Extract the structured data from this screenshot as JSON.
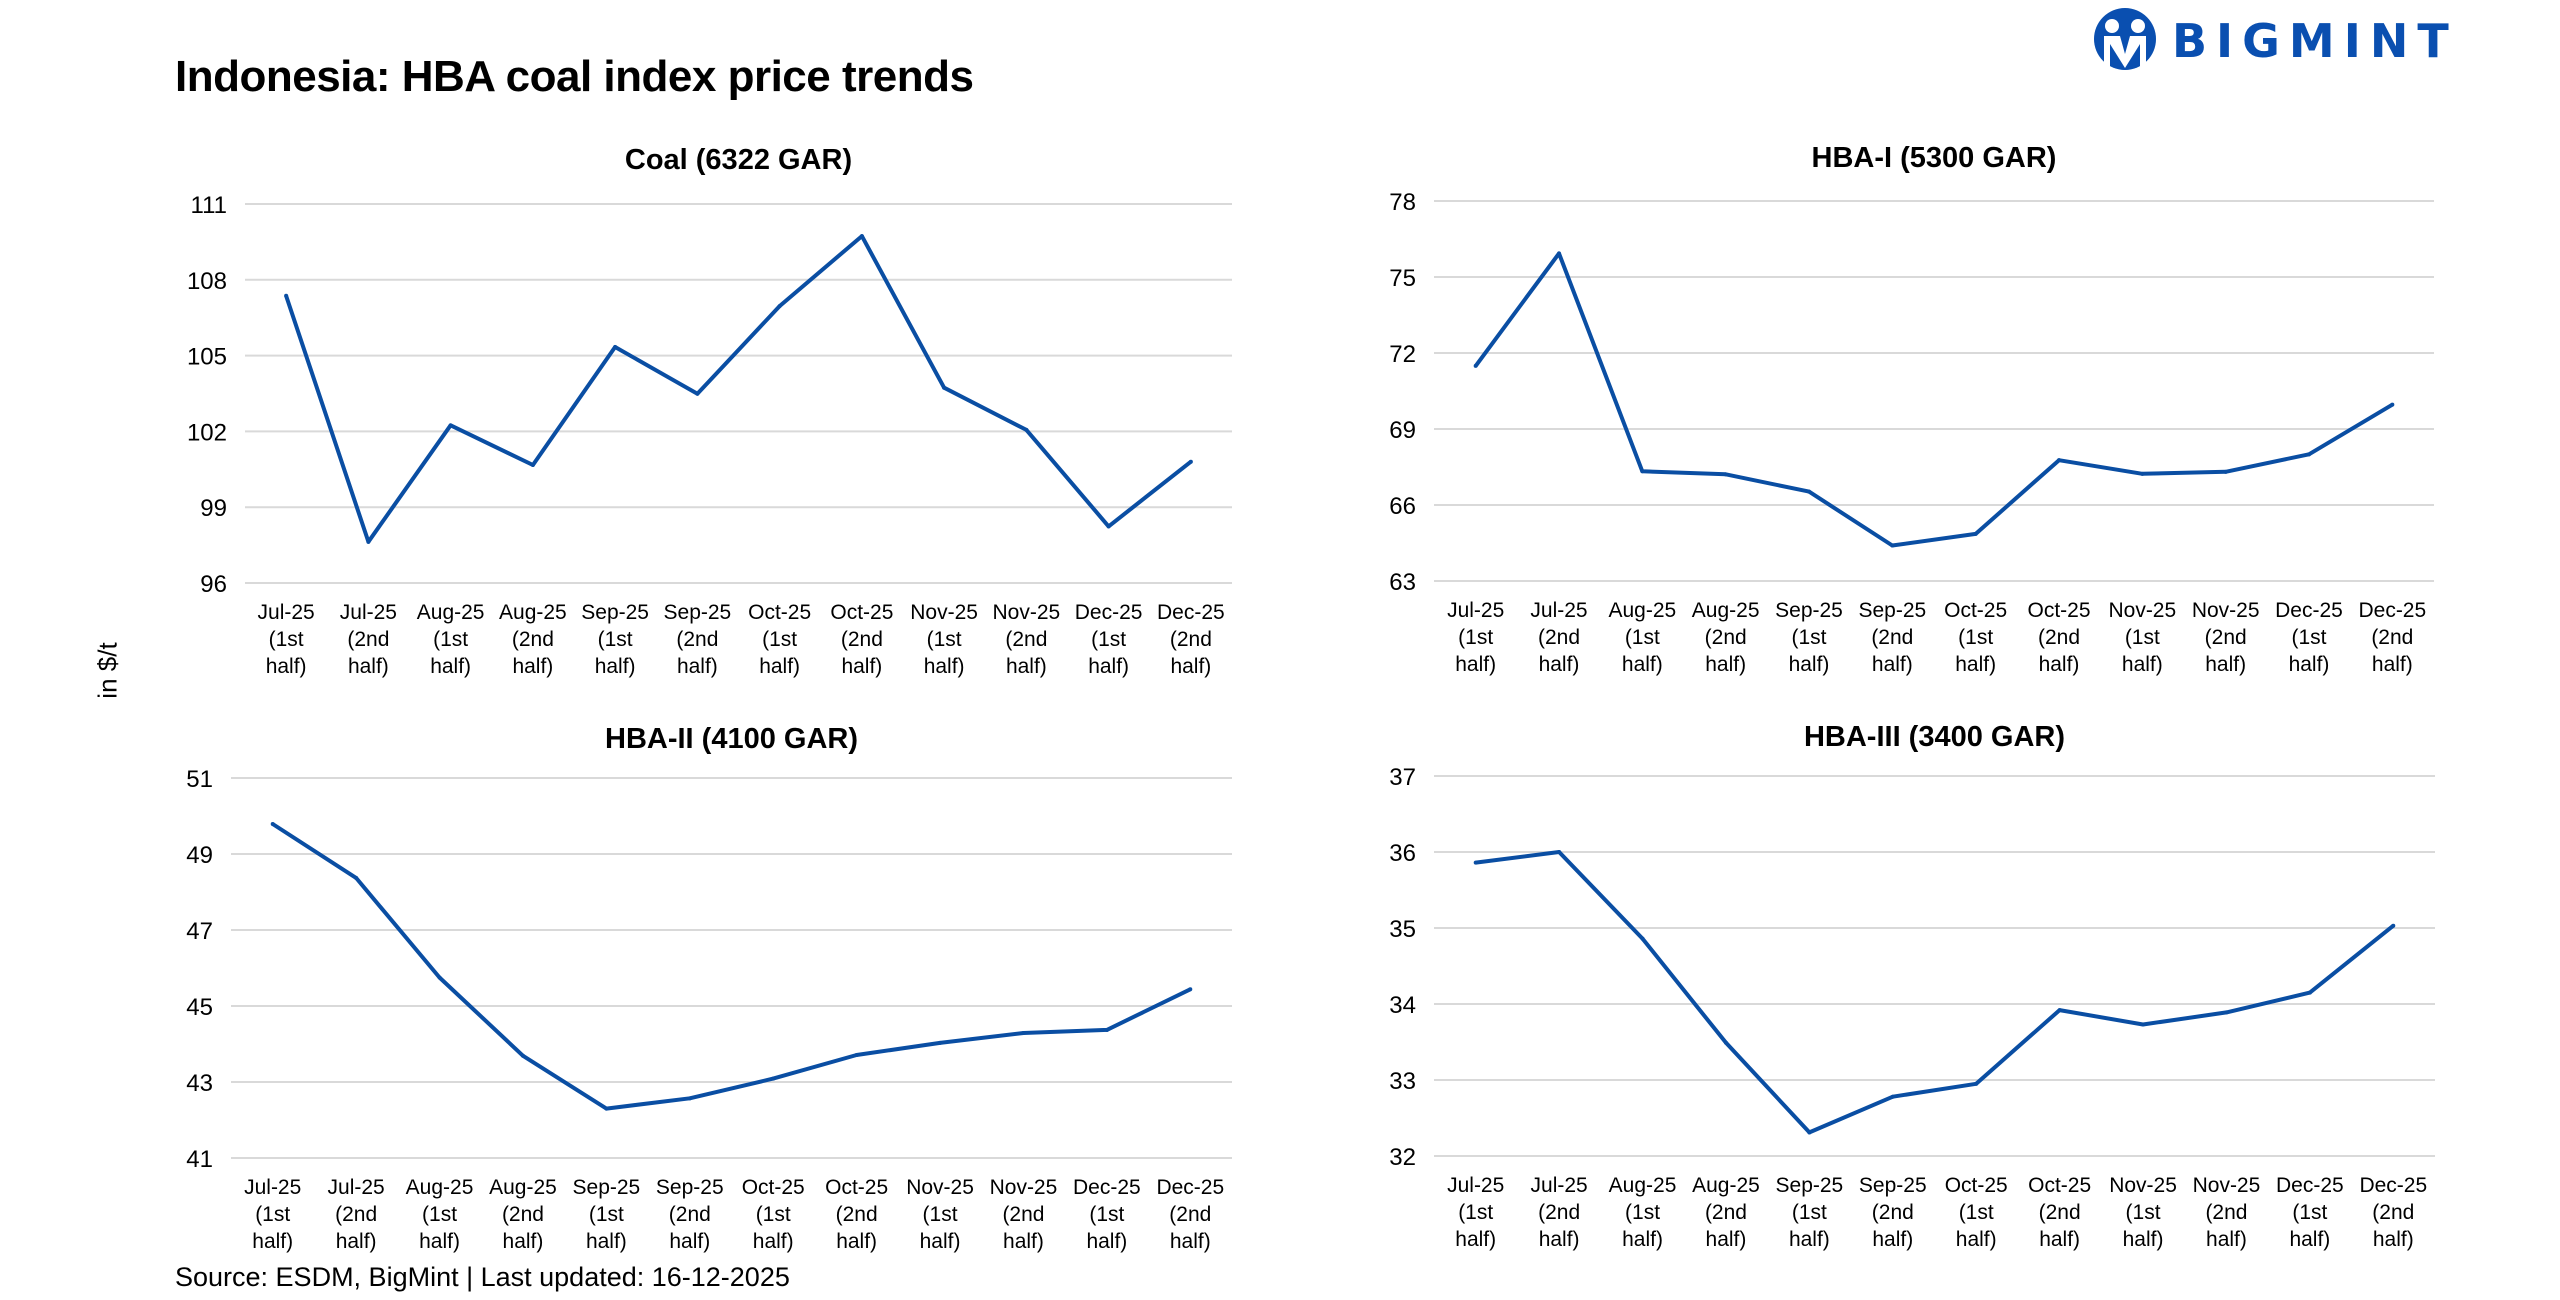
{
  "title": "Indonesia: HBA coal index price trends",
  "brand": "BIGMINT",
  "y_axis_label": "in $/t",
  "source": "Source: ESDM, BigMint | Last updated: 16-12-2025",
  "colors": {
    "line": "#0a4ea3",
    "grid": "#d9d9d9",
    "logo": "#0a4fb0"
  },
  "chart_data": [
    {
      "type": "line",
      "title": "Coal (6322 GAR)",
      "categories": [
        [
          "Jul-25",
          "(1st",
          "half)"
        ],
        [
          "Jul-25",
          "(2nd",
          "half)"
        ],
        [
          "Aug-25",
          "(1st",
          "half)"
        ],
        [
          "Aug-25",
          "(2nd",
          "half)"
        ],
        [
          "Sep-25",
          "(1st",
          "half)"
        ],
        [
          "Sep-25",
          "(2nd",
          "half)"
        ],
        [
          "Oct-25",
          "(1st",
          "half)"
        ],
        [
          "Oct-25",
          "(2nd",
          "half)"
        ],
        [
          "Nov-25",
          "(1st",
          "half)"
        ],
        [
          "Nov-25",
          "(2nd",
          "half)"
        ],
        [
          "Dec-25",
          "(1st",
          "half)"
        ],
        [
          "Dec-25",
          "(2nd",
          "half)"
        ]
      ],
      "values": [
        107.37,
        97.63,
        102.24,
        100.67,
        105.34,
        103.49,
        106.96,
        109.73,
        103.73,
        102.06,
        98.24,
        100.8
      ],
      "ylim": [
        96,
        111
      ],
      "yticks": [
        96,
        99,
        102,
        105,
        108,
        111
      ],
      "grid": true
    },
    {
      "type": "line",
      "title": "HBA-I (5300 GAR)",
      "categories": [
        [
          "Jul-25",
          "(1st",
          "half)"
        ],
        [
          "Jul-25",
          "(2nd",
          "half)"
        ],
        [
          "Aug-25",
          "(1st",
          "half)"
        ],
        [
          "Aug-25",
          "(2nd",
          "half)"
        ],
        [
          "Sep-25",
          "(1st",
          "half)"
        ],
        [
          "Sep-25",
          "(2nd",
          "half)"
        ],
        [
          "Oct-25",
          "(1st",
          "half)"
        ],
        [
          "Oct-25",
          "(2nd",
          "half)"
        ],
        [
          "Nov-25",
          "(1st",
          "half)"
        ],
        [
          "Nov-25",
          "(2nd",
          "half)"
        ],
        [
          "Dec-25",
          "(1st",
          "half)"
        ],
        [
          "Dec-25",
          "(2nd",
          "half)"
        ]
      ],
      "values": [
        71.49,
        75.93,
        67.33,
        67.21,
        66.53,
        64.4,
        64.86,
        67.77,
        67.23,
        67.31,
        68.0,
        69.96
      ],
      "ylim": [
        63,
        78
      ],
      "yticks": [
        63,
        66,
        69,
        72,
        75,
        78
      ],
      "grid": true
    },
    {
      "type": "line",
      "title": "HBA-II (4100 GAR)",
      "categories": [
        [
          "Jul-25",
          "(1st",
          "half)"
        ],
        [
          "Jul-25",
          "(2nd",
          "half)"
        ],
        [
          "Aug-25",
          "(1st",
          "half)"
        ],
        [
          "Aug-25",
          "(2nd",
          "half)"
        ],
        [
          "Sep-25",
          "(1st",
          "half)"
        ],
        [
          "Sep-25",
          "(2nd",
          "half)"
        ],
        [
          "Oct-25",
          "(1st",
          "half)"
        ],
        [
          "Oct-25",
          "(2nd",
          "half)"
        ],
        [
          "Nov-25",
          "(1st",
          "half)"
        ],
        [
          "Nov-25",
          "(2nd",
          "half)"
        ],
        [
          "Dec-25",
          "(1st",
          "half)"
        ],
        [
          "Dec-25",
          "(2nd",
          "half)"
        ]
      ],
      "values": [
        49.79,
        48.37,
        45.75,
        43.69,
        42.3,
        42.57,
        43.09,
        43.71,
        44.03,
        44.29,
        44.37,
        45.44
      ],
      "ylim": [
        41,
        51
      ],
      "yticks": [
        41,
        43,
        45,
        47,
        49,
        51
      ],
      "grid": true
    },
    {
      "type": "line",
      "title": "HBA-III (3400 GAR)",
      "categories": [
        [
          "Jul-25",
          "(1st",
          "half)"
        ],
        [
          "Jul-25",
          "(2nd",
          "half)"
        ],
        [
          "Aug-25",
          "(1st",
          "half)"
        ],
        [
          "Aug-25",
          "(2nd",
          "half)"
        ],
        [
          "Sep-25",
          "(1st",
          "half)"
        ],
        [
          "Sep-25",
          "(2nd",
          "half)"
        ],
        [
          "Oct-25",
          "(1st",
          "half)"
        ],
        [
          "Oct-25",
          "(2nd",
          "half)"
        ],
        [
          "Nov-25",
          "(1st",
          "half)"
        ],
        [
          "Nov-25",
          "(2nd",
          "half)"
        ],
        [
          "Dec-25",
          "(1st",
          "half)"
        ],
        [
          "Dec-25",
          "(2nd",
          "half)"
        ]
      ],
      "values": [
        35.86,
        36.0,
        34.86,
        33.49,
        32.31,
        32.78,
        32.95,
        33.92,
        33.73,
        33.89,
        34.15,
        35.03
      ],
      "ylim": [
        32,
        37
      ],
      "yticks": [
        32,
        33,
        34,
        35,
        36,
        37
      ],
      "grid": true
    }
  ]
}
